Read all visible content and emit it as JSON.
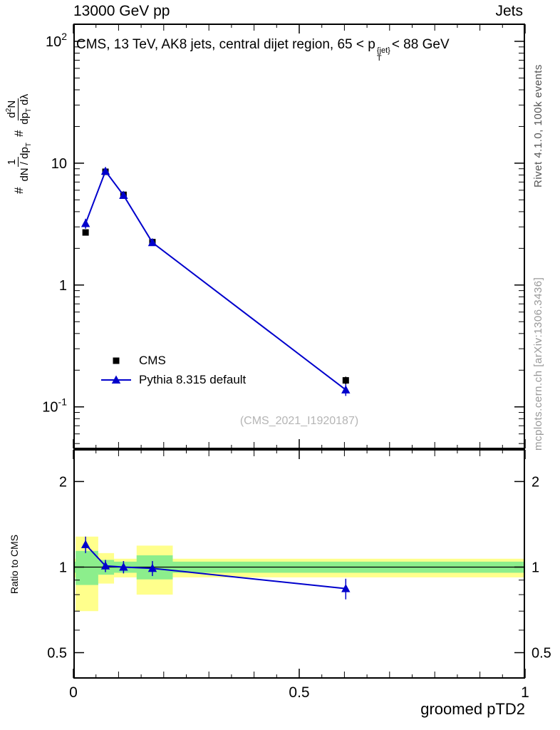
{
  "header": {
    "left_label": "13000 GeV pp",
    "right_label": "Jets"
  },
  "title": {
    "pre": "CMS, 13 TeV, AK8 jets, central dijet region, 65 < p",
    "sup": "{jet}",
    "sub": "T",
    "post": "< 88 GeV"
  },
  "ylabel": {
    "hash1": "#",
    "frac1_num": "1",
    "frac1_den_pre": "dN / dp",
    "frac1_den_sub": "T",
    "hash2": "#",
    "frac2_num_pre": "d",
    "frac2_num_sup": "2",
    "frac2_num_post": "N",
    "frac2_den_pre": "dp",
    "frac2_den_sub": "T",
    "frac2_den_post": " dλ"
  },
  "ratio_ylabel": "Ratio to CMS",
  "xlabel": "groomed pTD2",
  "watermark": "(CMS_2021_I1920187)",
  "side_notes": {
    "top_right": "Rivet 4.1.0,  100k events",
    "bottom_right": "mcplots.cern.ch [arXiv:1306.3436]"
  },
  "legend": {
    "items": [
      {
        "label": "CMS",
        "marker": "square",
        "color": "#000000",
        "line": false
      },
      {
        "label": "Pythia 8.315 default",
        "marker": "triangle",
        "color": "#0000cc",
        "line": true
      }
    ]
  },
  "chart_data": [
    {
      "type": "line",
      "panel": "main",
      "title": "CMS, 13 TeV, AK8 jets, central dijet region, 65 < p_T^{jet} < 88 GeV",
      "xlabel": "groomed pTD2",
      "ylabel": "# 1/(dN/dp_T) d^2N/(dp_T dλ)",
      "xlim": [
        0,
        1
      ],
      "ylim": [
        0.045,
        140
      ],
      "ylog": true,
      "grid": false,
      "legend_position": "middle-left",
      "xticks": [
        {
          "v": 0,
          "label": "0"
        },
        {
          "v": 0.5,
          "label": "0.5"
        },
        {
          "v": 1,
          "label": "1"
        }
      ],
      "yticks": [
        {
          "v": 100,
          "base": "10",
          "exp": "2"
        },
        {
          "v": 10,
          "base": "10"
        },
        {
          "v": 1,
          "base": "1"
        },
        {
          "v": 0.1,
          "base": "10",
          "exp": "-1"
        }
      ],
      "series": [
        {
          "name": "CMS",
          "marker": "square",
          "color": "#000000",
          "line": false,
          "x": [
            0.027,
            0.071,
            0.111,
            0.175,
            0.603
          ],
          "y": [
            2.7,
            8.5,
            5.5,
            2.25,
            0.165
          ],
          "yerr": [
            0.15,
            0.3,
            0.2,
            0.1,
            0.012
          ]
        },
        {
          "name": "Pythia 8.315 default",
          "marker": "triangle",
          "color": "#0000cc",
          "line": true,
          "x": [
            0.027,
            0.071,
            0.111,
            0.175,
            0.603
          ],
          "y": [
            3.2,
            8.6,
            5.45,
            2.23,
            0.138
          ],
          "yerr": [
            0.3,
            0.3,
            0.2,
            0.12,
            0.015
          ]
        }
      ]
    },
    {
      "type": "ratio",
      "panel": "ratio",
      "ylabel": "Ratio to CMS",
      "xlim": [
        0,
        1
      ],
      "ylim": [
        0.405,
        2.6
      ],
      "ylog": true,
      "reference_line": 1,
      "xticks": [
        {
          "v": 0,
          "label": "0"
        },
        {
          "v": 0.5,
          "label": "0.5"
        },
        {
          "v": 1,
          "label": "1"
        }
      ],
      "yticks": [
        {
          "v": 0.5,
          "base": "0.5"
        },
        {
          "v": 1,
          "base": "1"
        },
        {
          "v": 2,
          "base": "2"
        }
      ],
      "yticks_minor": [
        0.6,
        0.7,
        0.8,
        0.9
      ],
      "band_colors": {
        "outer": "#ffff8c",
        "inner": "#8cee8c"
      },
      "bands_outer": [
        [
          0,
          1,
          0.92,
          1.07
        ],
        [
          0.005,
          0.055,
          0.7,
          1.28
        ],
        [
          0.055,
          0.09,
          0.875,
          1.12
        ],
        [
          0.14,
          0.22,
          0.8,
          1.19
        ]
      ],
      "bands_inner": [
        [
          0,
          1,
          0.955,
          1.045
        ],
        [
          0.005,
          0.055,
          0.865,
          1.14
        ],
        [
          0.055,
          0.09,
          0.94,
          1.06
        ],
        [
          0.14,
          0.22,
          0.905,
          1.1
        ]
      ],
      "points": {
        "name": "Pythia 8.315 default / CMS",
        "color": "#0000cc",
        "marker": "triangle",
        "x": [
          0.027,
          0.071,
          0.111,
          0.175,
          0.603
        ],
        "y": [
          1.2,
          1.01,
          1.0,
          0.99,
          0.84
        ],
        "yerr": [
          0.08,
          0.05,
          0.05,
          0.06,
          0.07
        ]
      }
    }
  ]
}
